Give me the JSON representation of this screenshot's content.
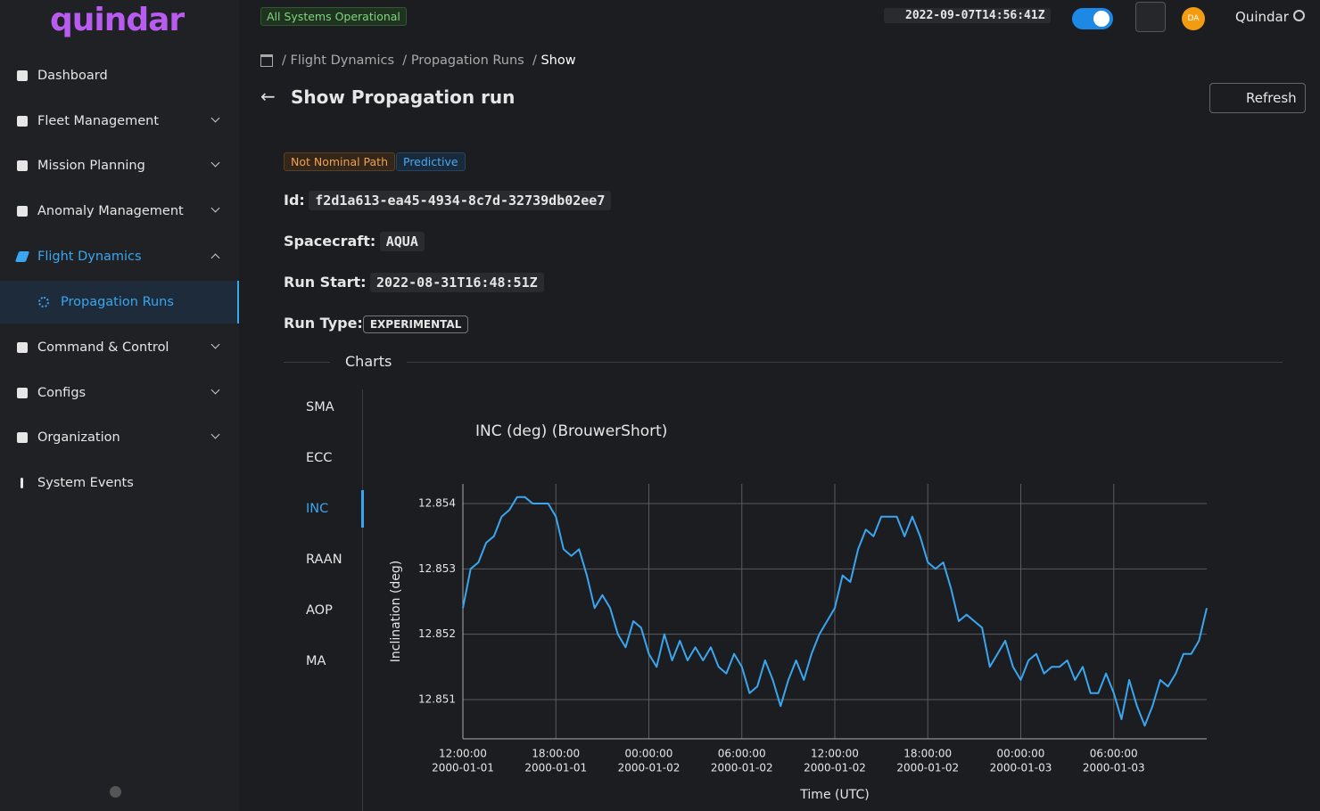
{
  "brand": "quindar",
  "status": "All Systems Operational",
  "clock": "2022-09-07T14:56:41Z",
  "avatar": "DA",
  "user": "Quindar",
  "nav": [
    "Dashboard",
    "Fleet Management",
    "Mission Planning",
    "Anomaly Management",
    "Flight Dynamics",
    "Propagation Runs",
    "Command & Control",
    "Configs",
    "Organization",
    "System Events"
  ],
  "breadcrumb": [
    "Flight Dynamics",
    "Propagation Runs",
    "Show"
  ],
  "page_title": "Show Propagation run",
  "refresh": "Refresh",
  "tags": [
    "Not Nominal Path",
    "Predictive"
  ],
  "fields": [
    {
      "label": "Id:",
      "value": "f2d1a613-ea45-4934-8c7d-32739db02ee7"
    },
    {
      "label": "Spacecraft:",
      "value": "AQUA"
    },
    {
      "label": "Run Start:",
      "value": "2022-08-31T16:48:51Z"
    },
    {
      "label": "Run Type:",
      "value": "EXPERIMENTAL"
    }
  ],
  "charts_heading": "Charts",
  "chart_tabs": [
    "SMA",
    "ECC",
    "INC",
    "RAAN",
    "AOP",
    "MA"
  ],
  "chart_data": {
    "type": "line",
    "title": "INC (deg) (BrouwerShort)",
    "x_label": "Time (UTC)",
    "y_label": "Inclination (deg)",
    "color": "#3aa6f0",
    "grid": true,
    "x": [
      "2000-01-01T12:00:00",
      "2000-01-01T12:30:00",
      "2000-01-01T13:00:00",
      "2000-01-01T13:30:00",
      "2000-01-01T14:00:00",
      "2000-01-01T14:30:00",
      "2000-01-01T15:00:00",
      "2000-01-01T15:30:00",
      "2000-01-01T16:00:00",
      "2000-01-01T16:30:00",
      "2000-01-01T17:00:00",
      "2000-01-01T17:30:00",
      "2000-01-01T18:00:00",
      "2000-01-01T18:30:00",
      "2000-01-01T19:00:00",
      "2000-01-01T19:30:00",
      "2000-01-01T20:00:00",
      "2000-01-01T20:30:00",
      "2000-01-01T21:00:00",
      "2000-01-01T21:30:00",
      "2000-01-01T22:00:00",
      "2000-01-01T22:30:00",
      "2000-01-01T23:00:00",
      "2000-01-01T23:30:00",
      "2000-01-02T00:00:00",
      "2000-01-02T00:30:00",
      "2000-01-02T01:00:00",
      "2000-01-02T01:30:00",
      "2000-01-02T02:00:00",
      "2000-01-02T02:30:00",
      "2000-01-02T03:00:00",
      "2000-01-02T03:30:00",
      "2000-01-02T04:00:00",
      "2000-01-02T04:30:00",
      "2000-01-02T05:00:00",
      "2000-01-02T05:30:00",
      "2000-01-02T06:00:00",
      "2000-01-02T06:30:00",
      "2000-01-02T07:00:00",
      "2000-01-02T07:30:00",
      "2000-01-02T08:00:00",
      "2000-01-02T08:30:00",
      "2000-01-02T09:00:00",
      "2000-01-02T09:30:00",
      "2000-01-02T10:00:00",
      "2000-01-02T10:30:00",
      "2000-01-02T11:00:00",
      "2000-01-02T11:30:00",
      "2000-01-02T12:00:00",
      "2000-01-02T12:30:00",
      "2000-01-02T13:00:00",
      "2000-01-02T13:30:00",
      "2000-01-02T14:00:00",
      "2000-01-02T14:30:00",
      "2000-01-02T15:00:00",
      "2000-01-02T15:30:00",
      "2000-01-02T16:00:00",
      "2000-01-02T16:30:00",
      "2000-01-02T17:00:00",
      "2000-01-02T17:30:00",
      "2000-01-02T18:00:00",
      "2000-01-02T18:30:00",
      "2000-01-02T19:00:00",
      "2000-01-02T19:30:00",
      "2000-01-02T20:00:00",
      "2000-01-02T20:30:00",
      "2000-01-02T21:00:00",
      "2000-01-02T21:30:00",
      "2000-01-02T22:00:00",
      "2000-01-02T22:30:00",
      "2000-01-02T23:00:00",
      "2000-01-02T23:30:00",
      "2000-01-03T00:00:00",
      "2000-01-03T00:30:00",
      "2000-01-03T01:00:00",
      "2000-01-03T01:30:00",
      "2000-01-03T02:00:00",
      "2000-01-03T02:30:00",
      "2000-01-03T03:00:00",
      "2000-01-03T03:30:00",
      "2000-01-03T04:00:00",
      "2000-01-03T04:30:00",
      "2000-01-03T05:00:00",
      "2000-01-03T05:30:00",
      "2000-01-03T06:00:00",
      "2000-01-03T06:30:00",
      "2000-01-03T07:00:00",
      "2000-01-03T07:30:00",
      "2000-01-03T08:00:00",
      "2000-01-03T08:30:00",
      "2000-01-03T09:00:00",
      "2000-01-03T09:30:00",
      "2000-01-03T10:00:00",
      "2000-01-03T10:30:00",
      "2000-01-03T11:00:00",
      "2000-01-03T11:30:00",
      "2000-01-03T12:00:00"
    ],
    "values": [
      12.8524,
      12.853,
      12.8531,
      12.8534,
      12.8535,
      12.8538,
      12.8539,
      12.8541,
      12.8541,
      12.854,
      12.854,
      12.854,
      12.8538,
      12.8533,
      12.8532,
      12.8533,
      12.8529,
      12.8524,
      12.8526,
      12.8524,
      12.852,
      12.8518,
      12.8522,
      12.8521,
      12.8517,
      12.8515,
      12.852,
      12.8516,
      12.8519,
      12.8516,
      12.8518,
      12.8516,
      12.8518,
      12.8515,
      12.8514,
      12.8517,
      12.8515,
      12.8511,
      12.8512,
      12.8516,
      12.8513,
      12.8509,
      12.8513,
      12.8516,
      12.8513,
      12.8517,
      12.852,
      12.8522,
      12.8524,
      12.8529,
      12.8528,
      12.8533,
      12.8536,
      12.8535,
      12.8538,
      12.8538,
      12.8538,
      12.8535,
      12.8538,
      12.8535,
      12.8531,
      12.853,
      12.8531,
      12.8527,
      12.8522,
      12.8523,
      12.8522,
      12.8521,
      12.8515,
      12.8517,
      12.8519,
      12.8515,
      12.8513,
      12.8516,
      12.8517,
      12.8514,
      12.8515,
      12.8515,
      12.8516,
      12.8513,
      12.8515,
      12.8511,
      12.8511,
      12.8514,
      12.8511,
      12.8507,
      12.8513,
      12.8509,
      12.8506,
      12.8509,
      12.8513,
      12.8512,
      12.8514,
      12.8517,
      12.8517,
      12.8519,
      12.8524
    ],
    "xlim": [
      "2000-01-01T12:00:00",
      "2000-01-03T12:00:00"
    ],
    "xticks": [
      {
        "value": "2000-01-01T12:00:00",
        "label": [
          "12:00:00",
          "2000-01-01"
        ]
      },
      {
        "value": "2000-01-01T18:00:00",
        "label": [
          "18:00:00",
          "2000-01-01"
        ]
      },
      {
        "value": "2000-01-02T00:00:00",
        "label": [
          "00:00:00",
          "2000-01-02"
        ]
      },
      {
        "value": "2000-01-02T06:00:00",
        "label": [
          "06:00:00",
          "2000-01-02"
        ]
      },
      {
        "value": "2000-01-02T12:00:00",
        "label": [
          "12:00:00",
          "2000-01-02"
        ]
      },
      {
        "value": "2000-01-02T18:00:00",
        "label": [
          "18:00:00",
          "2000-01-02"
        ]
      },
      {
        "value": "2000-01-03T00:00:00",
        "label": [
          "00:00:00",
          "2000-01-03"
        ]
      },
      {
        "value": "2000-01-03T06:00:00",
        "label": [
          "06:00:00",
          "2000-01-03"
        ]
      }
    ],
    "ylim": [
      12.8504,
      12.8543
    ],
    "yticks": [
      12.851,
      12.852,
      12.853,
      12.854
    ]
  }
}
